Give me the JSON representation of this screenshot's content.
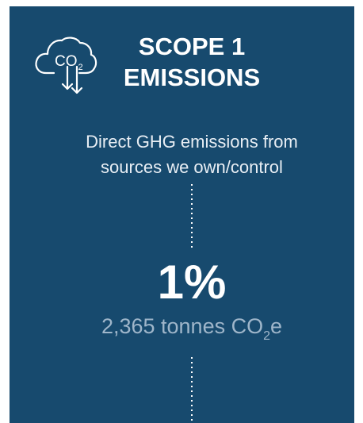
{
  "icon": {
    "label": "CO",
    "subscript": "2"
  },
  "header": {
    "title": [
      "SCOPE 1",
      "EMISSIONS"
    ]
  },
  "description": [
    "Direct GHG emissions from",
    "sources we own/control"
  ],
  "stat": {
    "value": "1%",
    "detail": {
      "prefix": "2,365 tonnes CO",
      "subscript": "2",
      "suffix": "e"
    }
  }
}
